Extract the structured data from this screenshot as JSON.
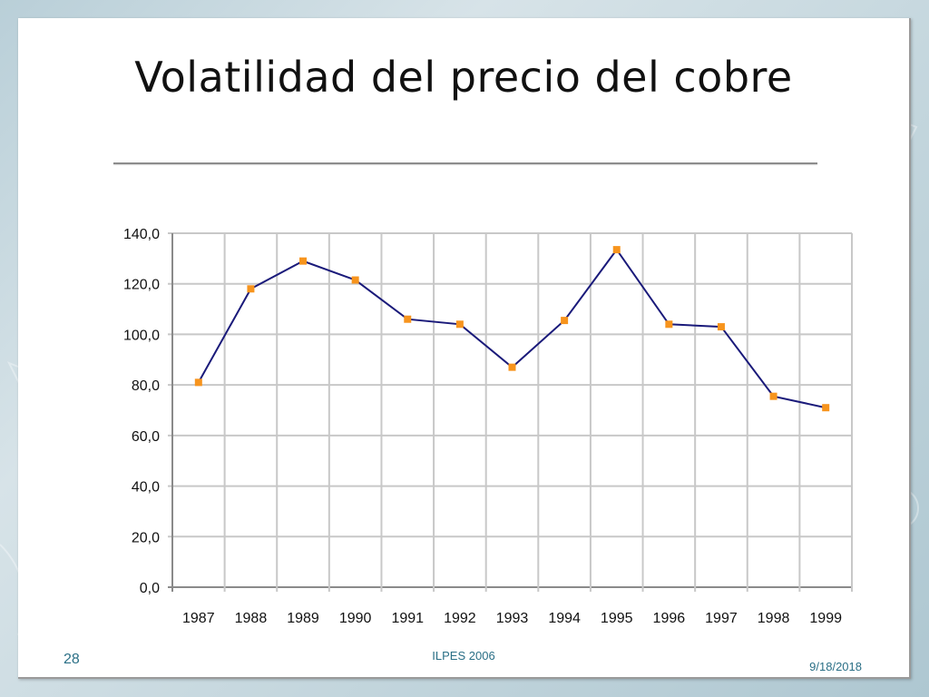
{
  "slide": {
    "title": "Volatilidad del precio del cobre",
    "number": "28",
    "footer": "ILPES 2006",
    "date": "9/18/2018"
  },
  "colors": {
    "line": "#1a1a7a",
    "marker": "#f7941d",
    "grid": "#c8c8c8",
    "axis": "#8a8a8a"
  },
  "chart_data": {
    "type": "line",
    "title": "",
    "xlabel": "",
    "ylabel": "",
    "categories": [
      "1987",
      "1988",
      "1989",
      "1990",
      "1991",
      "1992",
      "1993",
      "1994",
      "1995",
      "1996",
      "1997",
      "1998",
      "1999"
    ],
    "series": [
      {
        "values": [
          81,
          118,
          129,
          121.5,
          106,
          104,
          87,
          105.5,
          133.5,
          104,
          103,
          75.5,
          71
        ]
      }
    ],
    "ylim": [
      0,
      140
    ],
    "yticks": [
      "0,0",
      "20,0",
      "40,0",
      "60,0",
      "80,0",
      "100,0",
      "120,0",
      "140,0"
    ],
    "grid": true,
    "legend": "none"
  }
}
